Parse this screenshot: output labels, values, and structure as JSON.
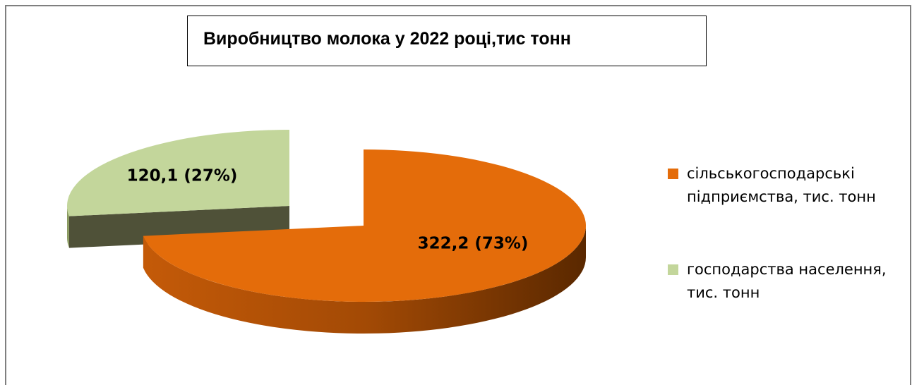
{
  "chart_data": {
    "type": "pie",
    "title": "Виробництво молока у 2022 році,тис тонн",
    "categories": [
      "сільськогосподарські підприємства, тис. тонн",
      "господарства населення, тис. тонн"
    ],
    "values": [
      322.2,
      120.1
    ],
    "value_labels": [
      "322,2 (73%)",
      "120,1 (27%)"
    ],
    "colors": [
      "#e46c0a",
      "#c3d69b"
    ],
    "legend": "right"
  }
}
